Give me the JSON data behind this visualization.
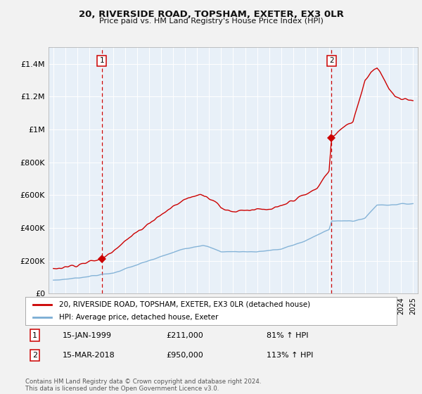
{
  "title": "20, RIVERSIDE ROAD, TOPSHAM, EXETER, EX3 0LR",
  "subtitle": "Price paid vs. HM Land Registry's House Price Index (HPI)",
  "sale1_date": "15-JAN-1999",
  "sale1_price": 211000,
  "sale1_hpi": "81% ↑ HPI",
  "sale2_date": "15-MAR-2018",
  "sale2_price": 950000,
  "sale2_hpi": "113% ↑ HPI",
  "legend1": "20, RIVERSIDE ROAD, TOPSHAM, EXETER, EX3 0LR (detached house)",
  "legend2": "HPI: Average price, detached house, Exeter",
  "footnote": "Contains HM Land Registry data © Crown copyright and database right 2024.\nThis data is licensed under the Open Government Licence v3.0.",
  "hpi_color": "#7aadd4",
  "price_color": "#cc0000",
  "vline_color": "#cc0000",
  "plot_bg_color": "#e8f0f8",
  "background_color": "#f0f0f0",
  "grid_color": "#ffffff",
  "ylim": [
    0,
    1500000
  ],
  "yticks": [
    0,
    200000,
    400000,
    600000,
    800000,
    1000000,
    1200000,
    1400000
  ],
  "sale1_year": 1999.04,
  "sale2_year": 2018.21,
  "xstart": 1995,
  "xend": 2025
}
